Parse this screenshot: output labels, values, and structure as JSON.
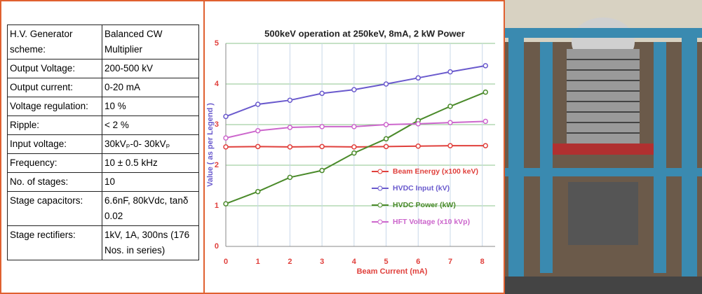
{
  "table": {
    "rows": [
      [
        "H.V. Generator scheme:",
        "Balanced CW Multiplier"
      ],
      [
        "Output Voltage:",
        "200-500 kV"
      ],
      [
        "Output current:",
        "0-20 mA"
      ],
      [
        "Voltage regulation:",
        "10 %"
      ],
      [
        "Ripple:",
        "< 2 %"
      ],
      [
        "Input voltage:",
        "30kVₚ-0- 30kVₚ"
      ],
      [
        "Frequency:",
        "10 ± 0.5 kHz"
      ],
      [
        "No. of stages:",
        "10"
      ],
      [
        "Stage capacitors:",
        "6.6nF, 80kVdc, tanδ 0.02"
      ],
      [
        "Stage rectifiers:",
        "1kV, 1A, 300ns (176 Nos. in series)"
      ]
    ]
  },
  "chart_data": {
    "type": "line",
    "title": "500keV operation at 250keV, 8mA, 2 kW Power",
    "x_label": "Beam Current  (mA)",
    "y_label": "Value  ( as per Legend )",
    "x": [
      0,
      1,
      2,
      3,
      4,
      5,
      6,
      7,
      8.1
    ],
    "series": [
      {
        "name": "Beam Energy (x100 keV)",
        "color": "#e0403c",
        "values": [
          2.45,
          2.46,
          2.45,
          2.46,
          2.45,
          2.46,
          2.47,
          2.48,
          2.48
        ]
      },
      {
        "name": "HVDC Input (kV)",
        "color": "#6a5acd",
        "values": [
          3.2,
          3.5,
          3.6,
          3.77,
          3.86,
          4.0,
          4.15,
          4.3,
          4.45
        ]
      },
      {
        "name": "HVDC Power (kW)",
        "color": "#4a8a2a",
        "values": [
          1.05,
          1.35,
          1.7,
          1.87,
          2.3,
          2.65,
          3.1,
          3.45,
          3.8
        ]
      },
      {
        "name": "HFT Voltage (x10 kVp)",
        "color": "#cc66cc",
        "values": [
          2.67,
          2.85,
          2.93,
          2.95,
          2.95,
          3.0,
          3.02,
          3.05,
          3.08
        ]
      }
    ],
    "xlim": [
      0,
      8.4
    ],
    "ylim": [
      0,
      5
    ],
    "xticks": [
      0,
      1,
      2,
      3,
      4,
      5,
      6,
      7,
      8
    ],
    "yticks": [
      0,
      1,
      2,
      3,
      4,
      5
    ],
    "grid": true,
    "legend": "right"
  }
}
